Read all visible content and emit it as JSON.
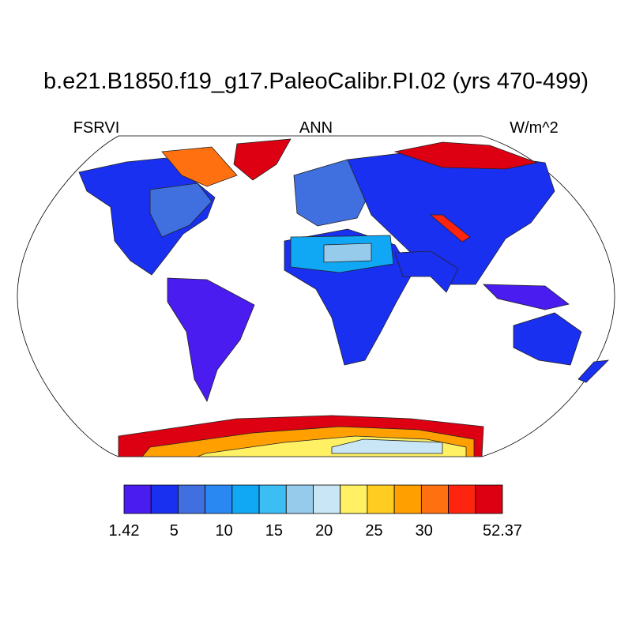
{
  "title": "b.e21.B1850.f19_g17.PaleoCalibr.PI.02 (yrs 470-499)",
  "left_string": "FSRVI",
  "center_string": "ANN",
  "right_string": "W/m^2",
  "colorbar": {
    "colors": [
      "#4a1cf0",
      "#1a30f0",
      "#4070e0",
      "#2a88f2",
      "#10a8f5",
      "#3cbef5",
      "#96cbec",
      "#c8e6f5",
      "#fff064",
      "#ffcc22",
      "#ffa000",
      "#ff7010",
      "#ff2410",
      "#dd0012",
      "#d42c2c"
    ],
    "labels": [
      1.42,
      5,
      10,
      15,
      20,
      25,
      30,
      52.37
    ]
  }
}
